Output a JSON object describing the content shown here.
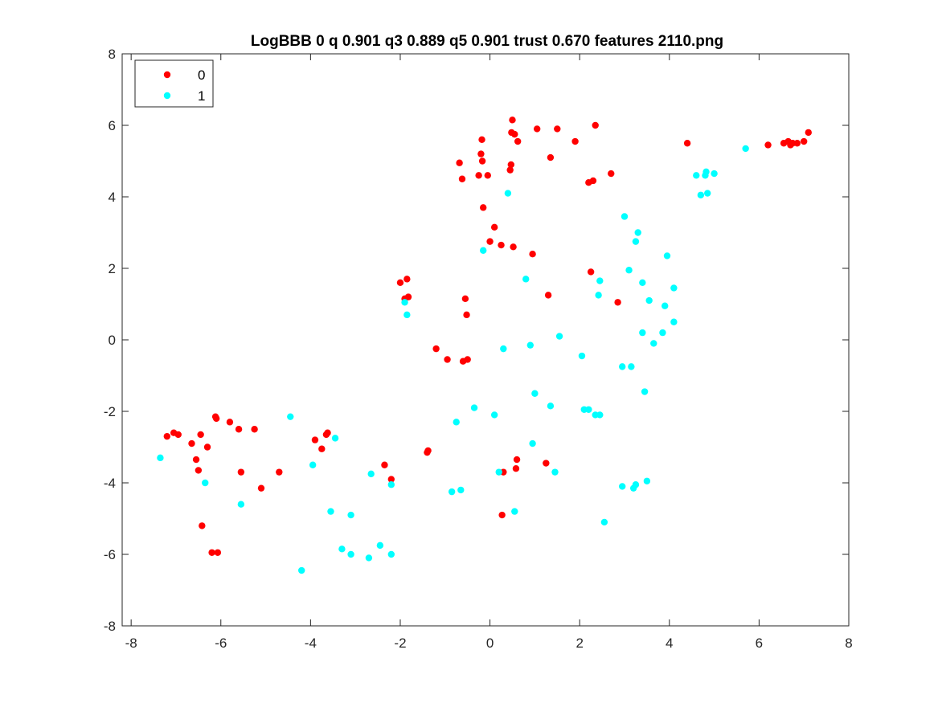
{
  "chart_data": {
    "type": "scatter",
    "title": "LogBBB 0 q 0.901 q3 0.889 q5 0.901 trust 0.670 features 2110.png",
    "xlabel": "",
    "ylabel": "",
    "xlim": [
      -8.2,
      8.0
    ],
    "ylim": [
      -8.0,
      8.0
    ],
    "xticks": [
      -8,
      -6,
      -4,
      -2,
      0,
      2,
      4,
      6,
      8
    ],
    "yticks": [
      -8,
      -6,
      -4,
      -2,
      0,
      2,
      4,
      6,
      8
    ],
    "xtick_labels": [
      "-8",
      "-6",
      "-4",
      "-2",
      "0",
      "2",
      "4",
      "6",
      "8"
    ],
    "ytick_labels": [
      "-8",
      "-6",
      "-4",
      "-2",
      "0",
      "2",
      "4",
      "6",
      "8"
    ],
    "grid": false,
    "legend_position": "top-left",
    "series": [
      {
        "name": "0",
        "color": "#ff0000",
        "points": [
          [
            -7.2,
            -2.7
          ],
          [
            -7.05,
            -2.6
          ],
          [
            -6.95,
            -2.65
          ],
          [
            -6.65,
            -2.9
          ],
          [
            -6.55,
            -3.35
          ],
          [
            -6.5,
            -3.65
          ],
          [
            -6.45,
            -2.65
          ],
          [
            -6.42,
            -5.2
          ],
          [
            -6.3,
            -3.0
          ],
          [
            -6.2,
            -5.95
          ],
          [
            -6.12,
            -2.15
          ],
          [
            -6.1,
            -2.2
          ],
          [
            -6.07,
            -5.95
          ],
          [
            -5.8,
            -2.3
          ],
          [
            -5.6,
            -2.5
          ],
          [
            -5.55,
            -3.7
          ],
          [
            -5.25,
            -2.5
          ],
          [
            -5.1,
            -4.15
          ],
          [
            -4.7,
            -3.7
          ],
          [
            -3.9,
            -2.8
          ],
          [
            -3.75,
            -3.05
          ],
          [
            -3.65,
            -2.65
          ],
          [
            -3.62,
            -2.6
          ],
          [
            -2.35,
            -3.5
          ],
          [
            -2.2,
            -3.9
          ],
          [
            -2.0,
            1.6
          ],
          [
            -1.9,
            1.15
          ],
          [
            -1.85,
            1.7
          ],
          [
            -1.82,
            1.2
          ],
          [
            -1.4,
            -3.15
          ],
          [
            -1.38,
            -3.1
          ],
          [
            -1.2,
            -0.25
          ],
          [
            -0.95,
            -0.55
          ],
          [
            -0.68,
            4.95
          ],
          [
            -0.62,
            4.5
          ],
          [
            -0.6,
            -0.6
          ],
          [
            -0.55,
            1.15
          ],
          [
            -0.52,
            0.7
          ],
          [
            -0.5,
            -0.55
          ],
          [
            -0.25,
            4.6
          ],
          [
            -0.2,
            5.2
          ],
          [
            -0.18,
            5.6
          ],
          [
            -0.17,
            5.0
          ],
          [
            -0.15,
            3.7
          ],
          [
            -0.05,
            4.6
          ],
          [
            0.0,
            2.75
          ],
          [
            0.1,
            3.15
          ],
          [
            0.25,
            2.65
          ],
          [
            0.27,
            -4.9
          ],
          [
            0.3,
            -3.7
          ],
          [
            0.45,
            4.75
          ],
          [
            0.47,
            4.9
          ],
          [
            0.48,
            5.8
          ],
          [
            0.5,
            6.15
          ],
          [
            0.52,
            2.6
          ],
          [
            0.55,
            5.75
          ],
          [
            0.58,
            -3.6
          ],
          [
            0.6,
            -3.35
          ],
          [
            0.62,
            5.55
          ],
          [
            0.95,
            2.4
          ],
          [
            1.05,
            5.9
          ],
          [
            1.25,
            -3.45
          ],
          [
            1.3,
            1.25
          ],
          [
            1.35,
            5.1
          ],
          [
            1.5,
            5.9
          ],
          [
            1.9,
            5.55
          ],
          [
            2.2,
            4.4
          ],
          [
            2.25,
            1.9
          ],
          [
            2.3,
            4.45
          ],
          [
            2.35,
            6.0
          ],
          [
            2.7,
            4.65
          ],
          [
            2.85,
            1.05
          ],
          [
            4.4,
            5.5
          ],
          [
            6.2,
            5.45
          ],
          [
            6.55,
            5.5
          ],
          [
            6.65,
            5.55
          ],
          [
            6.7,
            5.45
          ],
          [
            6.75,
            5.5
          ],
          [
            6.85,
            5.5
          ],
          [
            7.0,
            5.55
          ],
          [
            7.1,
            5.8
          ]
        ]
      },
      {
        "name": "1",
        "color": "#00ffff",
        "points": [
          [
            -7.35,
            -3.3
          ],
          [
            -6.35,
            -4.0
          ],
          [
            -5.55,
            -4.6
          ],
          [
            -4.45,
            -2.15
          ],
          [
            -4.2,
            -6.45
          ],
          [
            -3.95,
            -3.5
          ],
          [
            -3.55,
            -4.8
          ],
          [
            -3.45,
            -2.75
          ],
          [
            -3.3,
            -5.85
          ],
          [
            -3.1,
            -4.9
          ],
          [
            -3.1,
            -6.0
          ],
          [
            -2.7,
            -6.1
          ],
          [
            -2.65,
            -3.75
          ],
          [
            -2.45,
            -5.75
          ],
          [
            -2.2,
            -6.0
          ],
          [
            -2.2,
            -4.05
          ],
          [
            -1.9,
            1.05
          ],
          [
            -1.85,
            0.7
          ],
          [
            -0.85,
            -4.25
          ],
          [
            -0.75,
            -2.3
          ],
          [
            -0.65,
            -4.2
          ],
          [
            -0.35,
            -1.9
          ],
          [
            -0.15,
            2.5
          ],
          [
            0.1,
            -2.1
          ],
          [
            0.2,
            -3.7
          ],
          [
            0.3,
            -0.25
          ],
          [
            0.4,
            4.1
          ],
          [
            0.55,
            -4.8
          ],
          [
            0.8,
            1.7
          ],
          [
            0.9,
            -0.15
          ],
          [
            0.95,
            -2.9
          ],
          [
            1.0,
            -1.5
          ],
          [
            1.35,
            -1.85
          ],
          [
            1.45,
            -3.7
          ],
          [
            1.55,
            0.1
          ],
          [
            2.05,
            -0.45
          ],
          [
            2.1,
            -1.95
          ],
          [
            2.2,
            -1.95
          ],
          [
            2.35,
            -2.1
          ],
          [
            2.42,
            1.25
          ],
          [
            2.45,
            1.65
          ],
          [
            2.45,
            -2.1
          ],
          [
            2.55,
            -5.1
          ],
          [
            2.95,
            -4.1
          ],
          [
            2.95,
            -0.75
          ],
          [
            3.0,
            3.45
          ],
          [
            3.1,
            1.95
          ],
          [
            3.15,
            -0.75
          ],
          [
            3.2,
            -4.15
          ],
          [
            3.25,
            2.75
          ],
          [
            3.25,
            -4.05
          ],
          [
            3.3,
            3.0
          ],
          [
            3.4,
            0.2
          ],
          [
            3.4,
            1.6
          ],
          [
            3.45,
            -1.45
          ],
          [
            3.5,
            -3.95
          ],
          [
            3.55,
            1.1
          ],
          [
            3.65,
            -0.1
          ],
          [
            3.85,
            0.2
          ],
          [
            3.9,
            0.95
          ],
          [
            3.95,
            2.35
          ],
          [
            4.1,
            1.45
          ],
          [
            4.1,
            0.5
          ],
          [
            4.6,
            4.6
          ],
          [
            4.7,
            4.05
          ],
          [
            4.8,
            4.6
          ],
          [
            4.82,
            4.7
          ],
          [
            4.85,
            4.1
          ],
          [
            5.0,
            4.65
          ],
          [
            5.7,
            5.35
          ]
        ]
      }
    ]
  }
}
